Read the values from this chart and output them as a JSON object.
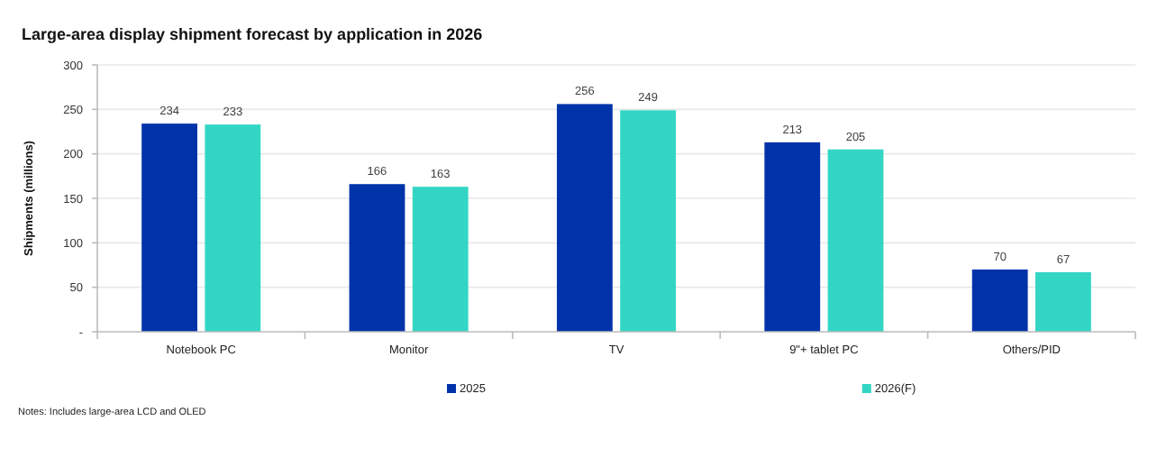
{
  "chart_data": {
    "type": "bar",
    "title": "Large-area display shipment forecast by application in 2026",
    "ylabel": "Shipments (millions)",
    "categories": [
      "Notebook PC",
      "Monitor",
      "TV",
      "9\"+ tablet PC",
      "Others/PID"
    ],
    "series": [
      {
        "name": "2025",
        "color": "#0033aa",
        "values": [
          234,
          166,
          256,
          213,
          70
        ]
      },
      {
        "name": "2026(F)",
        "color": "#33d6c4",
        "values": [
          233,
          163,
          249,
          205,
          67
        ]
      }
    ],
    "ylim": [
      0,
      300
    ],
    "yticks": [
      {
        "value": 0,
        "label": "-"
      },
      50,
      100,
      150,
      200,
      250,
      300
    ],
    "grid": "y",
    "legend": "bottom",
    "data_labels": true,
    "annotations": [
      "Notes: Includes large-area LCD and OLED"
    ]
  }
}
